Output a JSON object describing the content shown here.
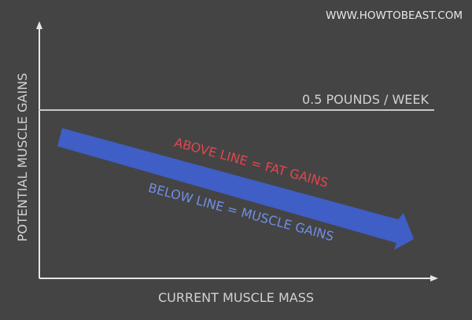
{
  "watermark": "WWW.HOWTOBEAST.COM",
  "axes": {
    "x_label": "CURRENT MUSCLE MASS",
    "y_label": "POTENTIAL MUSCLE GAINS"
  },
  "reference_line": {
    "label": "0.5 POUNDS / WEEK"
  },
  "annotations": {
    "above": "ABOVE LINE = FAT GAINS",
    "below": "BELOW LINE = MUSCLE GAINS"
  },
  "colors": {
    "background": "#444444",
    "axis": "#e6e6e6",
    "reference_line": "#c8c8c8",
    "text": "#d2d2d2",
    "arrow": "#3f5ec6",
    "above_text": "#e2464f",
    "below_text": "#6f8ee6"
  }
}
